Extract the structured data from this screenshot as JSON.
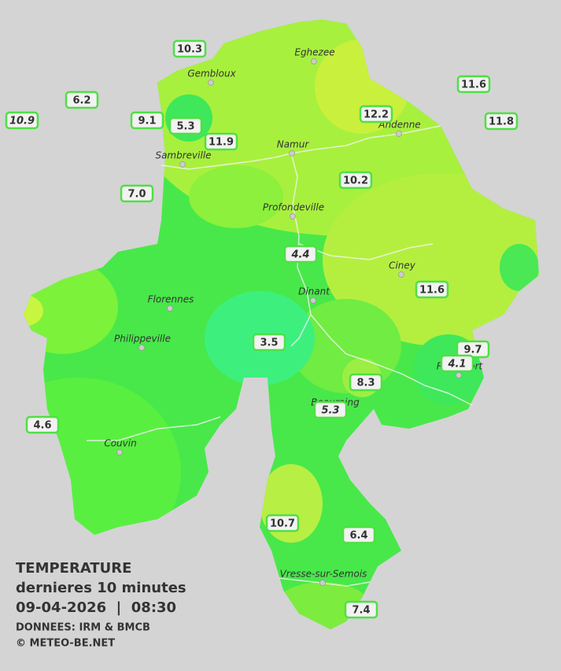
{
  "header": {
    "title": "TEMPERATURE",
    "subtitle": "dernieres 10 minutes",
    "timestamp": "09-04-2026  |  08:30",
    "source": "DONNEES: IRM & BMCB",
    "copyright": "© METEO-BE.NET"
  },
  "cities": [
    "Eghezee",
    "Gembloux",
    "Andenne",
    "Namur",
    "Sambreville",
    "Profondeville",
    "Ciney",
    "Dinant",
    "Florennes",
    "Philippeville",
    "Rochefort",
    "Beauraing",
    "Couvin",
    "Vresse-sur-Semois"
  ],
  "stations": [
    "10.3",
    "6.2",
    "10.9",
    "9.1",
    "5.3",
    "11.9",
    "7.0",
    "11.6",
    "12.2",
    "11.8",
    "10.2",
    "4.4",
    "11.6",
    "3.5",
    "9.7",
    "4.1",
    "8.3",
    "5.3",
    "4.6",
    "10.7",
    "6.4",
    "7.4"
  ]
}
